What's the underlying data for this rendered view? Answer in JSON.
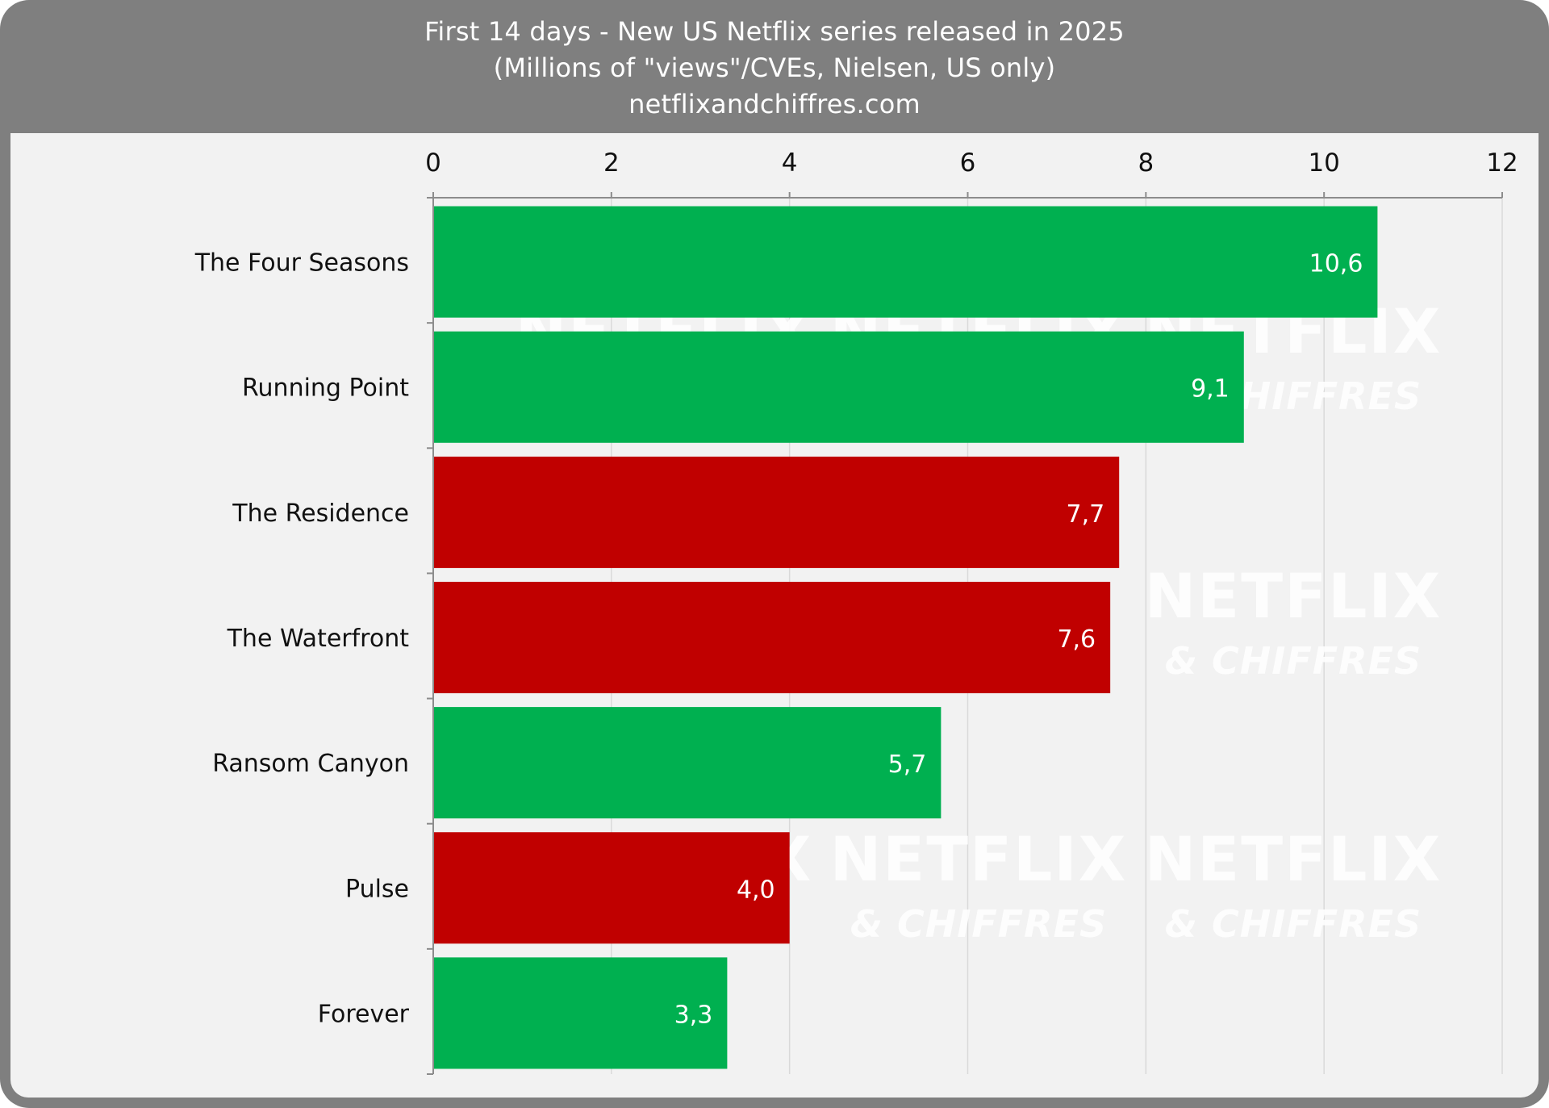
{
  "chart_data": {
    "type": "bar",
    "orientation": "horizontal",
    "title": "First 14 days - New US Netflix series released in 2025",
    "subtitle": "(Millions of \"views\"/CVEs, Nielsen, US only)",
    "source": "netflixandchiffres.com",
    "categories": [
      "The Four Seasons",
      "Running Point",
      "The Residence",
      "The Waterfront",
      "Ransom Canyon",
      "Pulse",
      "Forever"
    ],
    "values": [
      10.6,
      9.1,
      7.7,
      7.6,
      5.7,
      4.0,
      3.3
    ],
    "value_labels": [
      "10,6",
      "9,1",
      "7,7",
      "7,6",
      "5,7",
      "4,0",
      "3,3"
    ],
    "bar_colors": [
      "#00b050",
      "#00b050",
      "#c00000",
      "#c00000",
      "#00b050",
      "#c00000",
      "#00b050"
    ],
    "xlim": [
      0,
      12
    ],
    "x_ticks": [
      0,
      2,
      4,
      6,
      8,
      10,
      12
    ],
    "x_tick_labels": [
      "0",
      "2",
      "4",
      "6",
      "8",
      "10",
      "12"
    ],
    "x_axis_position": "top",
    "grid": true,
    "xlabel": "",
    "ylabel": ""
  },
  "watermark": {
    "line1": "NETFLIX",
    "line2": "& CHIFFRES"
  },
  "colors": {
    "header_bg": "#7f7f7f",
    "plot_bg": "#f2f2f2",
    "green": "#00b050",
    "red": "#c00000",
    "grid": "#d9d9d9"
  }
}
